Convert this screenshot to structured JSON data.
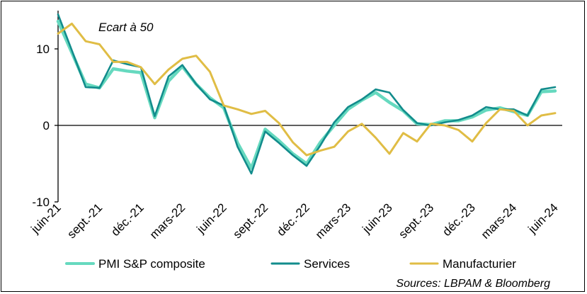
{
  "chart_data": {
    "type": "line",
    "title": "",
    "annotation": "Ecart à 50",
    "source": "Sources: LBPAM & Bloomberg",
    "xlabel": "",
    "ylabel": "",
    "ylim": [
      -10,
      15
    ],
    "yticks": [
      -10,
      0,
      10
    ],
    "ytick_labels": [
      "-10",
      "0",
      "10"
    ],
    "xtick_labels": [
      "juin-21",
      "sept.-21",
      "déc.-21",
      "mars-22",
      "juin-22",
      "sept.-22",
      "déc.-22",
      "mars-23",
      "juin-23",
      "sept.-23",
      "déc.-23",
      "mars-24",
      "juin-24"
    ],
    "xtick_index_step": 3,
    "months": 37,
    "colors": {
      "composite": "#66d9bf",
      "services": "#128c8c",
      "manufacturier": "#e0bd45",
      "axis": "#000000"
    },
    "series": [
      {
        "name": "PMI S&P composite",
        "key": "composite",
        "values": [
          13.6,
          9.5,
          5.4,
          4.9,
          7.4,
          7.1,
          6.9,
          1.0,
          5.8,
          7.7,
          5.4,
          3.6,
          2.3,
          -2.3,
          -5.6,
          -0.5,
          -2.0,
          -3.7,
          -5.0,
          -2.2,
          0.0,
          2.1,
          3.3,
          4.3,
          3.0,
          1.9,
          0.2,
          0.1,
          0.6,
          0.6,
          1.1,
          2.0,
          2.3,
          1.8,
          1.3,
          4.4,
          4.5
        ]
      },
      {
        "name": "Services",
        "key": "services",
        "values": [
          14.5,
          9.8,
          5.0,
          4.9,
          8.5,
          8.0,
          7.6,
          1.2,
          6.4,
          7.9,
          5.4,
          3.4,
          2.6,
          -2.8,
          -6.3,
          -0.8,
          -2.3,
          -3.9,
          -5.3,
          -2.6,
          0.4,
          2.4,
          3.4,
          4.7,
          4.3,
          2.0,
          0.3,
          0.0,
          0.4,
          0.7,
          1.3,
          2.4,
          2.1,
          2.1,
          1.3,
          4.7,
          5.0
        ]
      },
      {
        "name": "Manufacturier",
        "key": "manufacturier",
        "values": [
          12.0,
          13.3,
          11.0,
          10.6,
          8.3,
          8.3,
          7.6,
          5.4,
          7.3,
          8.7,
          9.1,
          7.0,
          2.6,
          2.1,
          1.5,
          1.9,
          0.3,
          -2.2,
          -3.9,
          -3.3,
          -2.8,
          -0.8,
          0.2,
          -1.6,
          -3.7,
          -1.0,
          -2.1,
          0.2,
          0.0,
          -0.6,
          -2.1,
          0.3,
          2.1,
          1.9,
          0.0,
          1.3,
          1.6
        ]
      }
    ],
    "legend": {
      "position": "bottom",
      "entries": [
        "PMI S&P composite",
        "Services",
        "Manufacturier"
      ]
    },
    "grid": false
  }
}
